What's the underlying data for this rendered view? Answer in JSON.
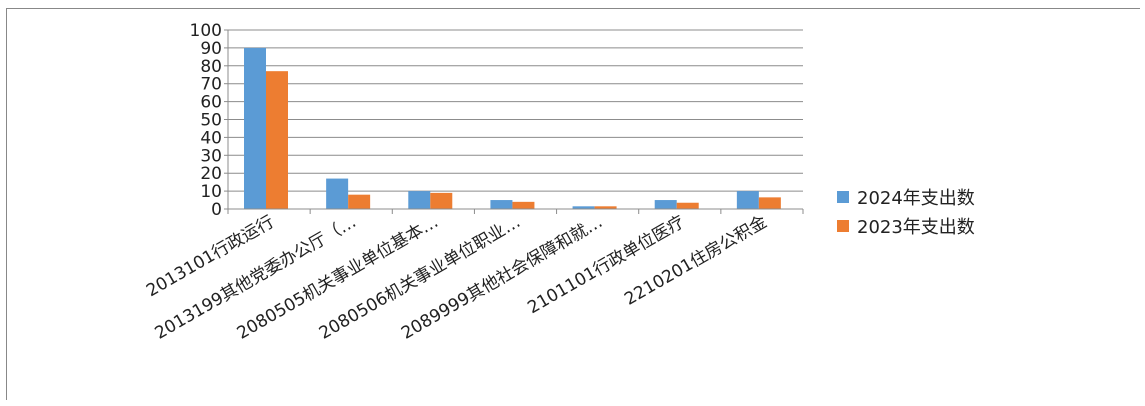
{
  "chart_data": {
    "type": "bar",
    "categories": [
      "2013101行政运行",
      "2013199其他党委办公厅（…",
      "2080505机关事业单位基本…",
      "2080506机关事业单位职业…",
      "2089999其他社会保障和就…",
      "2101101行政单位医疗",
      "2210201住房公积金"
    ],
    "series": [
      {
        "name": "2024年支出数",
        "color": "#5B9BD5",
        "values": [
          90,
          17,
          10,
          5,
          1.5,
          5,
          10
        ]
      },
      {
        "name": "2023年支出数",
        "color": "#ED7D31",
        "values": [
          77,
          8,
          9,
          4,
          1.5,
          3.5,
          6.5
        ]
      }
    ],
    "title": "",
    "xlabel": "",
    "ylabel": "",
    "ylim": [
      0,
      100
    ],
    "yticks": [
      "0",
      "10",
      "20",
      "30",
      "40",
      "50",
      "60",
      "70",
      "80",
      "90",
      "100"
    ],
    "grid": true,
    "legend_position": "right"
  }
}
